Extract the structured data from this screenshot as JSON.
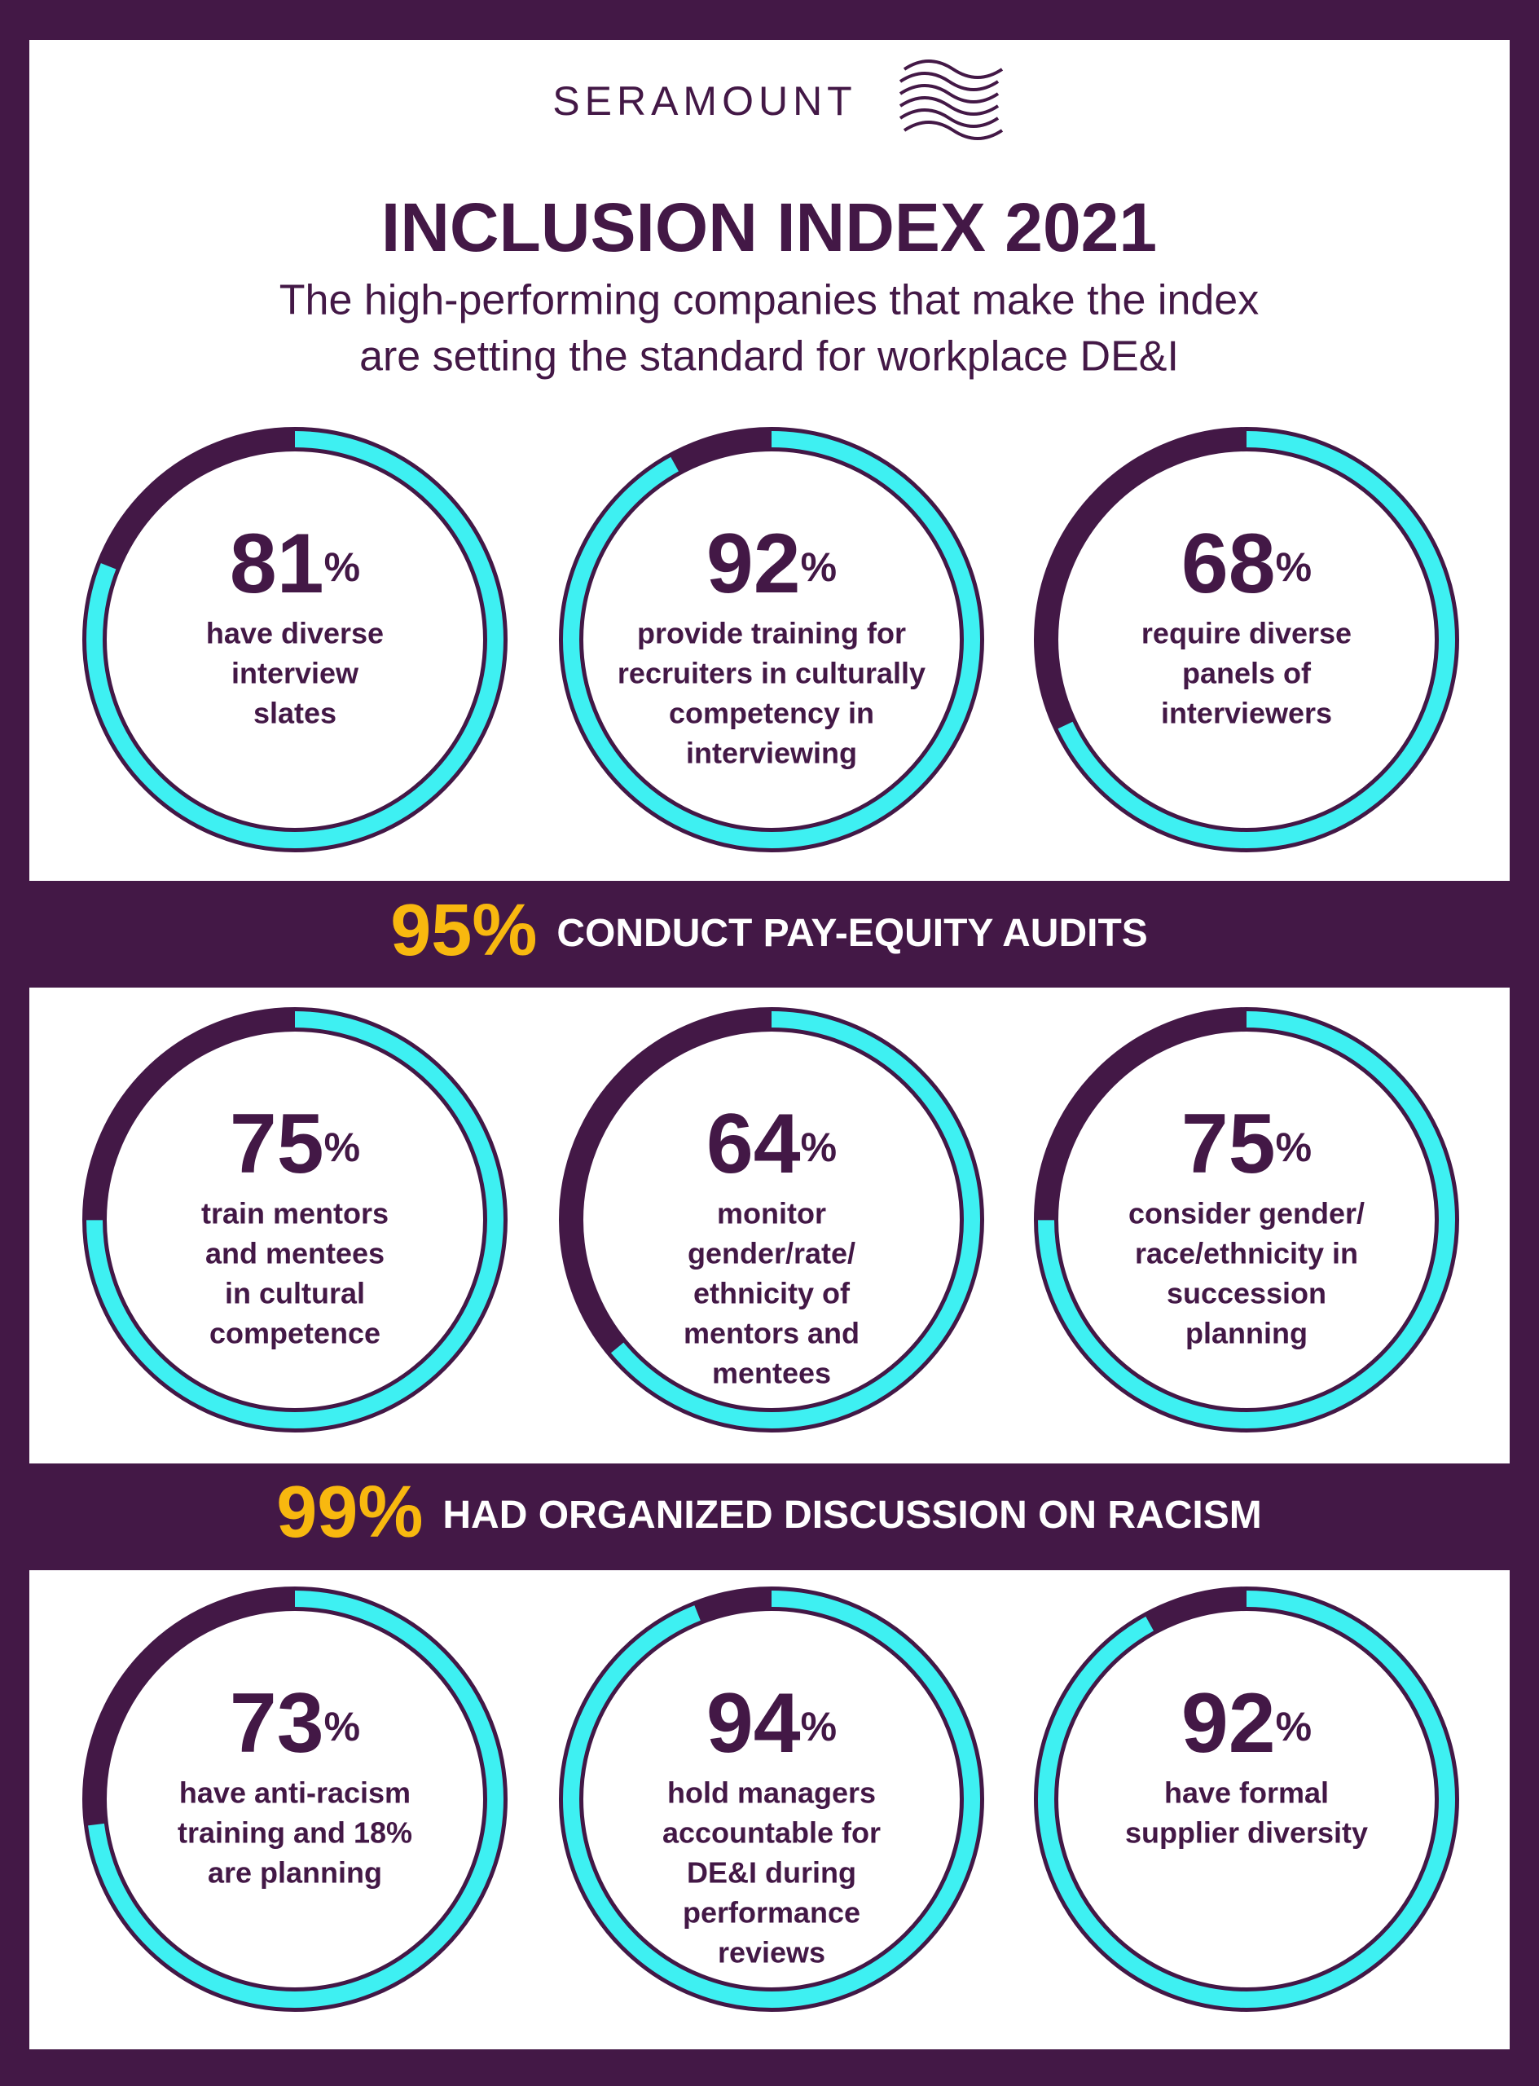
{
  "header": {
    "logo": "SERAMOUNT",
    "title": "INCLUSION INDEX 2021",
    "subtitle": [
      "The high-performing companies that make the index",
      "are setting the standard for workplace DE&I"
    ]
  },
  "stats": [
    {
      "value": 81,
      "unit": "%",
      "label": [
        "have diverse",
        "interview",
        "slates"
      ]
    },
    {
      "value": 92,
      "unit": "%",
      "label": [
        "provide training for",
        "recruiters in culturally",
        "competency in",
        "interviewing"
      ]
    },
    {
      "value": 68,
      "unit": "%",
      "label": [
        "require diverse",
        "panels of",
        "interviewers"
      ]
    },
    {
      "value": 75,
      "unit": "%",
      "label": [
        "train mentors",
        "and mentees",
        "in cultural",
        "competence"
      ]
    },
    {
      "value": 64,
      "unit": "%",
      "label": [
        "monitor",
        "gender/rate/",
        "ethnicity of",
        "mentors and",
        "mentees"
      ]
    },
    {
      "value": 75,
      "unit": "%",
      "label": [
        "consider gender/",
        "race/ethnicity in",
        "succession",
        "planning"
      ]
    },
    {
      "value": 73,
      "unit": "%",
      "label": [
        "have anti-racism",
        "training and 18%",
        "are planning"
      ]
    },
    {
      "value": 94,
      "unit": "%",
      "label": [
        "hold managers",
        "accountable for",
        "DE&I during",
        "performance",
        "reviews"
      ]
    },
    {
      "value": 92,
      "unit": "%",
      "label": [
        "have formal",
        "supplier diversity"
      ]
    }
  ],
  "banners": [
    {
      "percent": "95%",
      "text": "CONDUCT PAY-EQUITY AUDITS"
    },
    {
      "percent": "99%",
      "text": "HAD ORGANIZED DISCUSSION ON RACISM"
    }
  ]
}
